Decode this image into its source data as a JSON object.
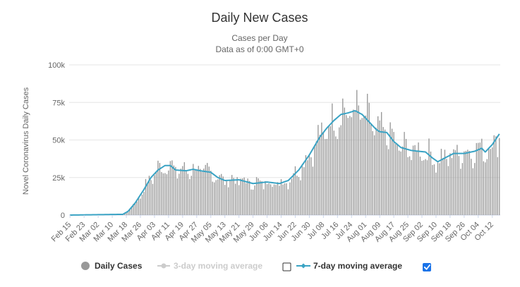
{
  "chart_data": {
    "type": "bar",
    "title": "Daily New Cases",
    "subtitle_lines": [
      "Cases per Day",
      "Data as of 0:00 GMT+0"
    ],
    "ylabel": "Novel Coronavirus Daily Cases",
    "ylim": [
      0,
      100000
    ],
    "y_ticks": [
      {
        "value": 0,
        "label": "0"
      },
      {
        "value": 25000,
        "label": "25k"
      },
      {
        "value": 50000,
        "label": "50k"
      },
      {
        "value": 75000,
        "label": "75k"
      },
      {
        "value": 100000,
        "label": "100k"
      }
    ],
    "x_range": [
      "Feb 15",
      "Oct 15"
    ],
    "x_ticks": [
      {
        "index": 0,
        "label": "Feb 15"
      },
      {
        "index": 8,
        "label": "Feb 23"
      },
      {
        "index": 16,
        "label": "Mar 02"
      },
      {
        "index": 24,
        "label": "Mar 10"
      },
      {
        "index": 32,
        "label": "Mar 18"
      },
      {
        "index": 40,
        "label": "Mar 26"
      },
      {
        "index": 48,
        "label": "Apr 03"
      },
      {
        "index": 56,
        "label": "Apr 11"
      },
      {
        "index": 64,
        "label": "Apr 19"
      },
      {
        "index": 72,
        "label": "Apr 27"
      },
      {
        "index": 80,
        "label": "May 05"
      },
      {
        "index": 88,
        "label": "May 13"
      },
      {
        "index": 96,
        "label": "May 21"
      },
      {
        "index": 104,
        "label": "May 29"
      },
      {
        "index": 112,
        "label": "Jun 06"
      },
      {
        "index": 120,
        "label": "Jun 14"
      },
      {
        "index": 128,
        "label": "Jun 22"
      },
      {
        "index": 136,
        "label": "Jun 30"
      },
      {
        "index": 144,
        "label": "Jul 08"
      },
      {
        "index": 152,
        "label": "Jul 16"
      },
      {
        "index": 160,
        "label": "Jul 24"
      },
      {
        "index": 168,
        "label": "Aug 01"
      },
      {
        "index": 176,
        "label": "Aug 09"
      },
      {
        "index": 184,
        "label": "Aug 17"
      },
      {
        "index": 192,
        "label": "Aug 25"
      },
      {
        "index": 200,
        "label": "Sep 02"
      },
      {
        "index": 208,
        "label": "Sep 10"
      },
      {
        "index": 216,
        "label": "Sep 18"
      },
      {
        "index": 224,
        "label": "Sep 26"
      },
      {
        "index": 232,
        "label": "Oct 04"
      },
      {
        "index": 240,
        "label": "Oct 12"
      }
    ],
    "moving_average_keypoints": [
      {
        "index": 0,
        "value": 0
      },
      {
        "index": 30,
        "value": 500
      },
      {
        "index": 33,
        "value": 2500
      },
      {
        "index": 37,
        "value": 8000
      },
      {
        "index": 42,
        "value": 17000
      },
      {
        "index": 46,
        "value": 25000
      },
      {
        "index": 50,
        "value": 30000
      },
      {
        "index": 54,
        "value": 33000
      },
      {
        "index": 57,
        "value": 33000
      },
      {
        "index": 60,
        "value": 30000
      },
      {
        "index": 66,
        "value": 29500
      },
      {
        "index": 70,
        "value": 30500
      },
      {
        "index": 74,
        "value": 29500
      },
      {
        "index": 80,
        "value": 28500
      },
      {
        "index": 84,
        "value": 25000
      },
      {
        "index": 88,
        "value": 23000
      },
      {
        "index": 96,
        "value": 23500
      },
      {
        "index": 104,
        "value": 21000
      },
      {
        "index": 112,
        "value": 22000
      },
      {
        "index": 119,
        "value": 21000
      },
      {
        "index": 124,
        "value": 23000
      },
      {
        "index": 130,
        "value": 30000
      },
      {
        "index": 136,
        "value": 40000
      },
      {
        "index": 142,
        "value": 52000
      },
      {
        "index": 146,
        "value": 58000
      },
      {
        "index": 150,
        "value": 63000
      },
      {
        "index": 154,
        "value": 67000
      },
      {
        "index": 158,
        "value": 68000
      },
      {
        "index": 162,
        "value": 69500
      },
      {
        "index": 166,
        "value": 67000
      },
      {
        "index": 170,
        "value": 62000
      },
      {
        "index": 174,
        "value": 57000
      },
      {
        "index": 176,
        "value": 55500
      },
      {
        "index": 180,
        "value": 55000
      },
      {
        "index": 184,
        "value": 49000
      },
      {
        "index": 188,
        "value": 45000
      },
      {
        "index": 194,
        "value": 43000
      },
      {
        "index": 202,
        "value": 42000
      },
      {
        "index": 206,
        "value": 38000
      },
      {
        "index": 209,
        "value": 35500
      },
      {
        "index": 213,
        "value": 38000
      },
      {
        "index": 218,
        "value": 41000
      },
      {
        "index": 224,
        "value": 41000
      },
      {
        "index": 230,
        "value": 42500
      },
      {
        "index": 234,
        "value": 44500
      },
      {
        "index": 236,
        "value": 42000
      },
      {
        "index": 240,
        "value": 47000
      },
      {
        "index": 244,
        "value": 54000
      }
    ],
    "daily_variation_seed": 7,
    "series": [
      {
        "name": "Daily Cases",
        "visible": true,
        "color": "#999999"
      },
      {
        "name": "3-day moving average",
        "visible": false,
        "color": "#cccccc"
      },
      {
        "name": "7-day moving average",
        "visible": true,
        "color": "#3aa3c4"
      }
    ]
  },
  "legend": [
    {
      "label": "Daily Cases",
      "checkbox": null
    },
    {
      "label": "3-day moving average",
      "checkbox": false
    },
    {
      "label": "7-day moving average",
      "checkbox": true
    }
  ],
  "colors": {
    "bar": "#999999",
    "line": "#3aa3c4",
    "grid": "#e6e6e6",
    "checkbox_checked": "#1a73e8"
  }
}
